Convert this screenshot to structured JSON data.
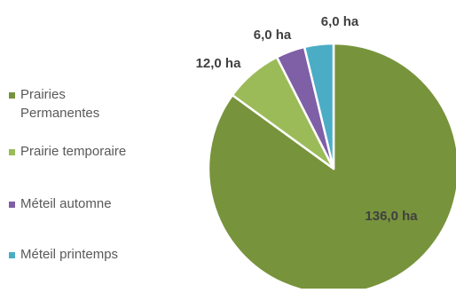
{
  "chart_data": {
    "type": "pie",
    "title": "",
    "legend_position": "left",
    "unit": "ha",
    "slices": [
      {
        "name": "Prairies Permanentes",
        "value": 136.0,
        "label": "136,0 ha",
        "color": "#77933c"
      },
      {
        "name": "Prairie temporaire",
        "value": 12.0,
        "label": "12,0 ha",
        "color": "#9bbb59"
      },
      {
        "name": "Méteil automne",
        "value": 6.0,
        "label": "6,0 ha",
        "color": "#7f5fa5"
      },
      {
        "name": "Méteil printemps",
        "value": 6.0,
        "label": "6,0 ha",
        "color": "#4bacc6"
      }
    ]
  }
}
